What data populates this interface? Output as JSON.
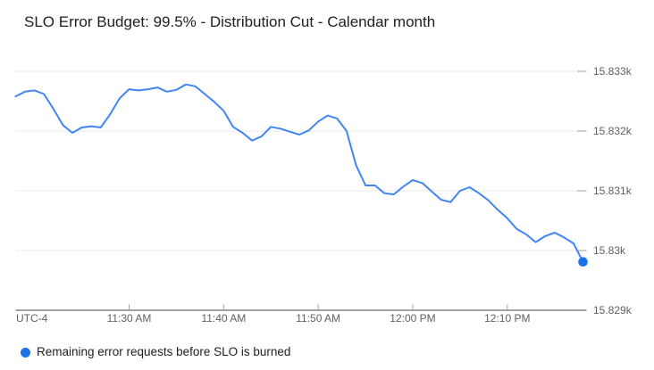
{
  "chart_data": {
    "type": "line",
    "title": "SLO Error Budget: 99.5% - Distribution Cut - Calendar month",
    "legend": "Remaining error requests before SLO is burned",
    "timezone_label": "UTC-4",
    "legend_position": "bottom",
    "grid": true,
    "y_axis_side": "right",
    "x_start": "11:18 AM",
    "x_end": "12:18 PM",
    "x_interval_minutes": 1,
    "x_tick_labels": [
      "11:30 AM",
      "11:40 AM",
      "11:50 AM",
      "12:00 PM",
      "12:10 PM"
    ],
    "x_tick_minutes": [
      12,
      22,
      32,
      42,
      52
    ],
    "y_tick_labels": [
      "15.833k",
      "15.832k",
      "15.831k",
      "15.83k",
      "15.829k"
    ],
    "y_tick_values": [
      15833,
      15832,
      15831,
      15830,
      15829
    ],
    "ylim": [
      15829,
      15833.2
    ],
    "series": [
      {
        "name": "Remaining error requests before SLO is burned",
        "color": "#4285f4",
        "values": [
          15832.58,
          15832.66,
          15832.68,
          15832.62,
          15832.37,
          15832.1,
          15831.97,
          15832.06,
          15832.08,
          15832.06,
          15832.28,
          15832.55,
          15832.7,
          15832.68,
          15832.7,
          15832.73,
          15832.66,
          15832.69,
          15832.78,
          15832.75,
          15832.62,
          15832.49,
          15832.34,
          15832.07,
          15831.97,
          15831.84,
          15831.91,
          15832.07,
          15832.04,
          15831.99,
          15831.94,
          15832.01,
          15832.16,
          15832.26,
          15832.21,
          15832.0,
          15831.43,
          15831.09,
          15831.09,
          15830.96,
          15830.94,
          15831.07,
          15831.18,
          15831.13,
          15830.99,
          15830.85,
          15830.81,
          15831.0,
          15831.06,
          15830.96,
          15830.84,
          15830.68,
          15830.54,
          15830.36,
          15830.27,
          15830.14,
          15830.24,
          15830.3,
          15830.22,
          15830.12,
          15829.81
        ]
      }
    ],
    "colors": {
      "line": "#4285f4",
      "endpoint_dot": "#1a73e8",
      "grid": "#ebebeb",
      "axis": "#80868b",
      "tick": "#9aa0a6",
      "axis_label_text": "#616161",
      "title_text": "#212121",
      "legend_text": "#1f1f1f",
      "background": "#ffffff"
    }
  }
}
